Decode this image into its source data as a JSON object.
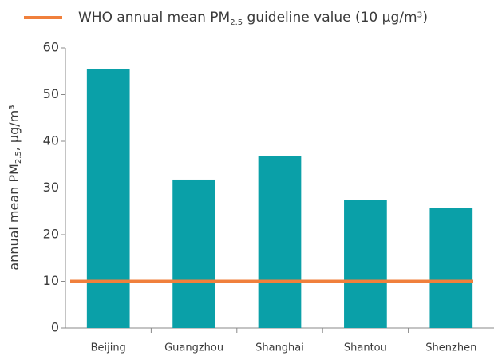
{
  "chart_data": {
    "type": "bar",
    "categories": [
      "Beijing",
      "Guangzhou",
      "Shanghai",
      "Shantou",
      "Shenzhen"
    ],
    "values": [
      55.5,
      31.8,
      36.8,
      27.5,
      25.8
    ],
    "color": "#0aa0a8",
    "ylim": [
      0,
      60
    ],
    "yticks": [
      0,
      10,
      20,
      30,
      40,
      50,
      60
    ],
    "y_label": {
      "text": "annual mean PM",
      "sub": "2.5",
      "rest": ", µg/m³"
    },
    "reference_line": {
      "value": 10,
      "color": "#f0803c",
      "label": {
        "text": "WHO annual mean PM",
        "sub": "2.5",
        "rest": " guideline value (10 µg/m³)"
      }
    }
  }
}
